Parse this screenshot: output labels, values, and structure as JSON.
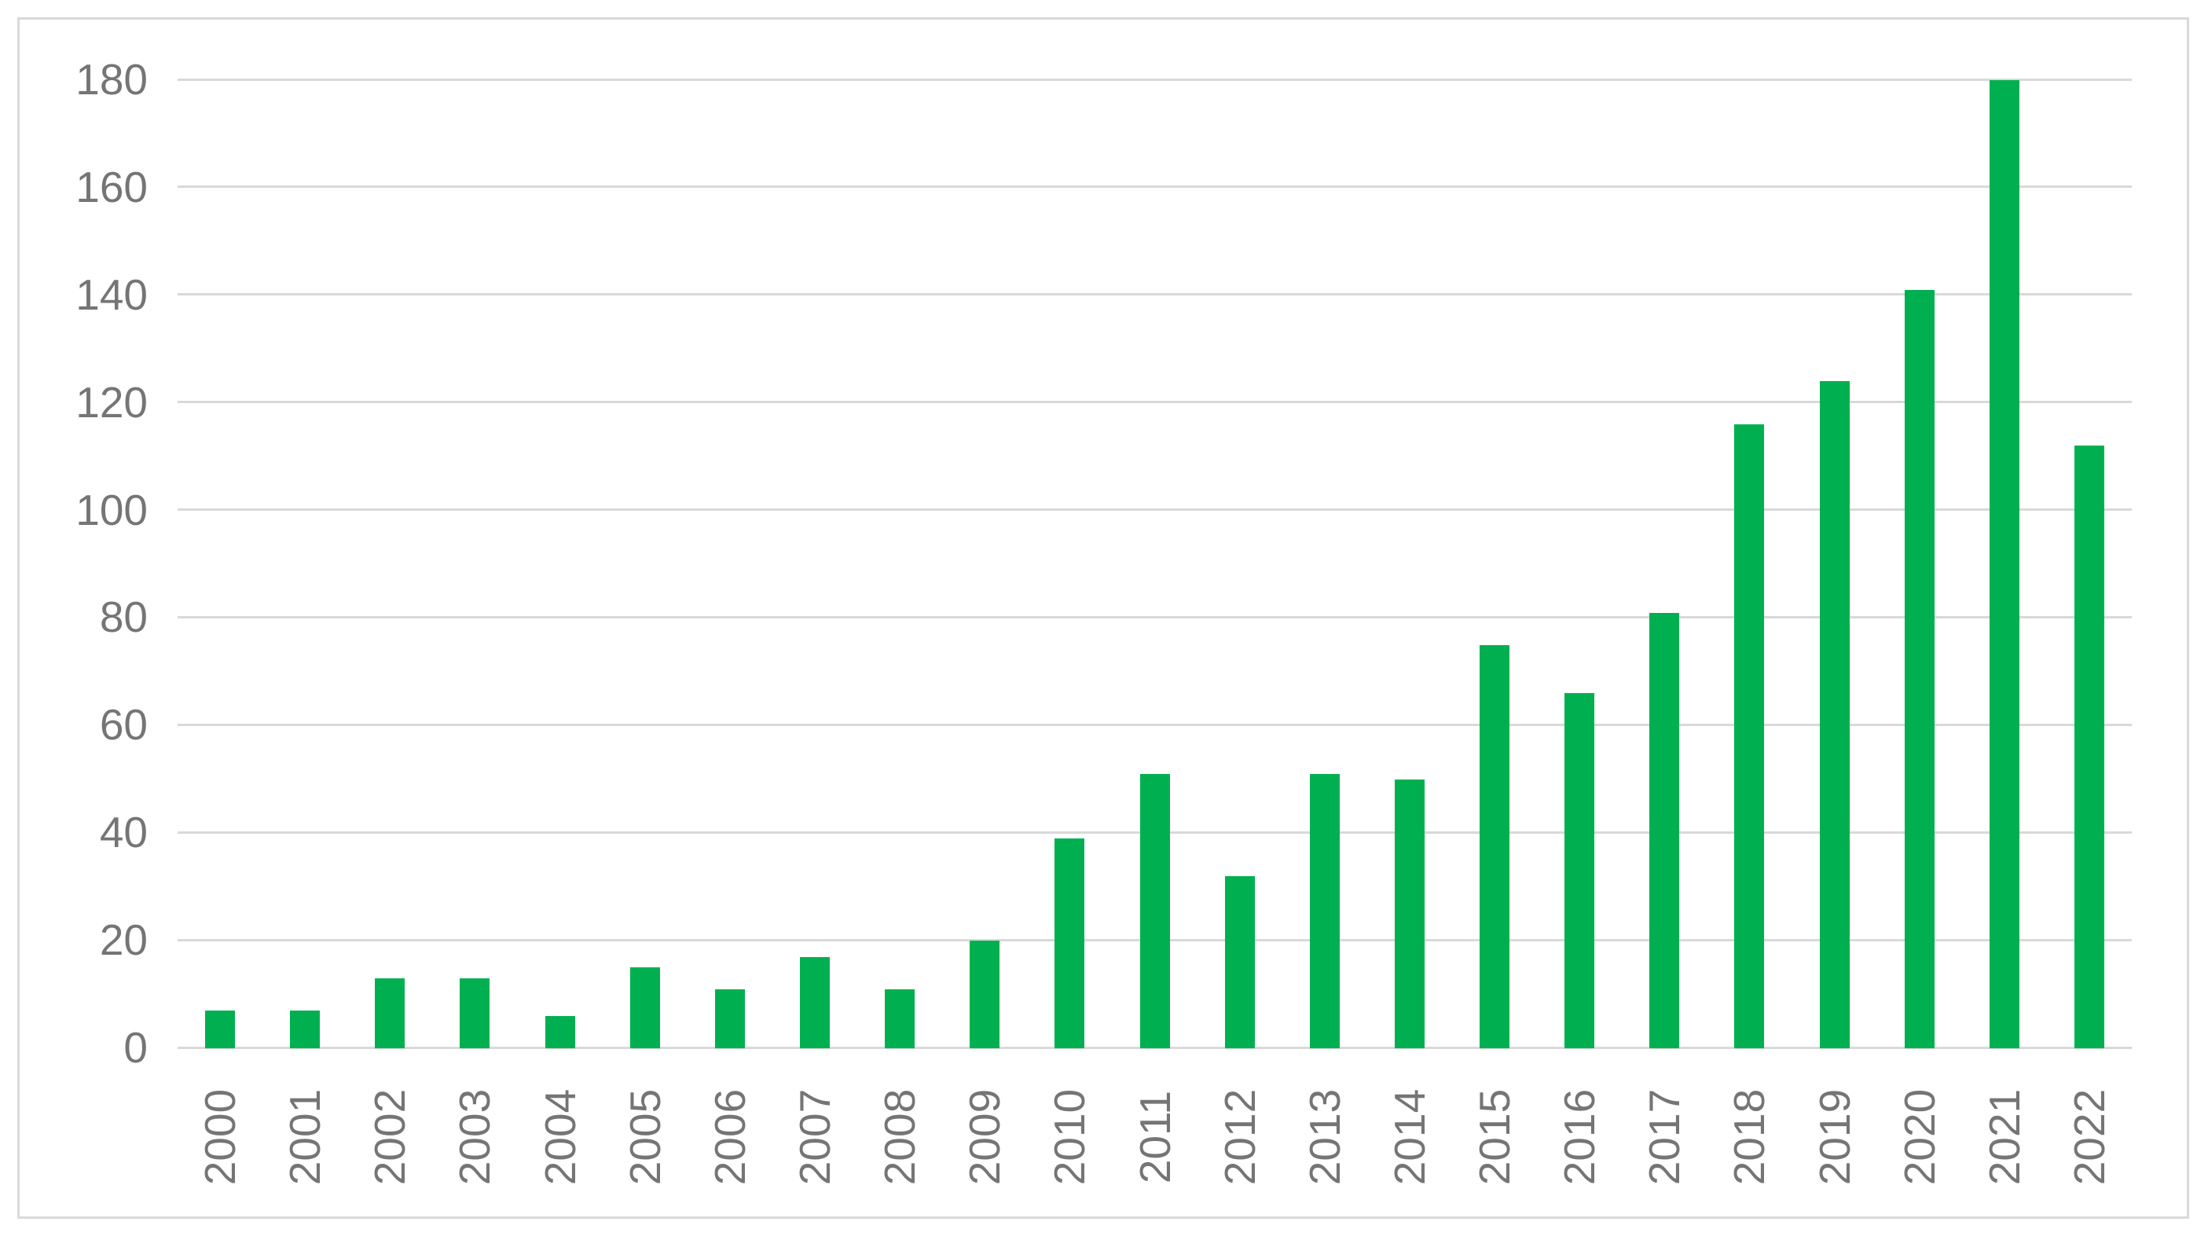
{
  "chart_data": {
    "type": "bar",
    "title": "",
    "xlabel": "",
    "ylabel": "",
    "categories": [
      "2000",
      "2001",
      "2002",
      "2003",
      "2004",
      "2005",
      "2006",
      "2007",
      "2008",
      "2009",
      "2010",
      "2011",
      "2012",
      "2013",
      "2014",
      "2015",
      "2016",
      "2017",
      "2018",
      "2019",
      "2020",
      "2021",
      "2022"
    ],
    "values": [
      7,
      7,
      13,
      13,
      6,
      15,
      11,
      17,
      11,
      20,
      39,
      51,
      32,
      51,
      50,
      75,
      66,
      81,
      116,
      124,
      141,
      180,
      112
    ],
    "ylim": [
      0,
      180
    ],
    "y_ticks": [
      180,
      160,
      140,
      120,
      100,
      80,
      60,
      40,
      20,
      0
    ],
    "grid": true,
    "legend": "none",
    "bar_color": "#00B050",
    "gridline_color": "#D9D9D9",
    "border_color": "#D9D9D9",
    "axis_label_color": "#757575",
    "background_color": "#FFFFFF"
  }
}
